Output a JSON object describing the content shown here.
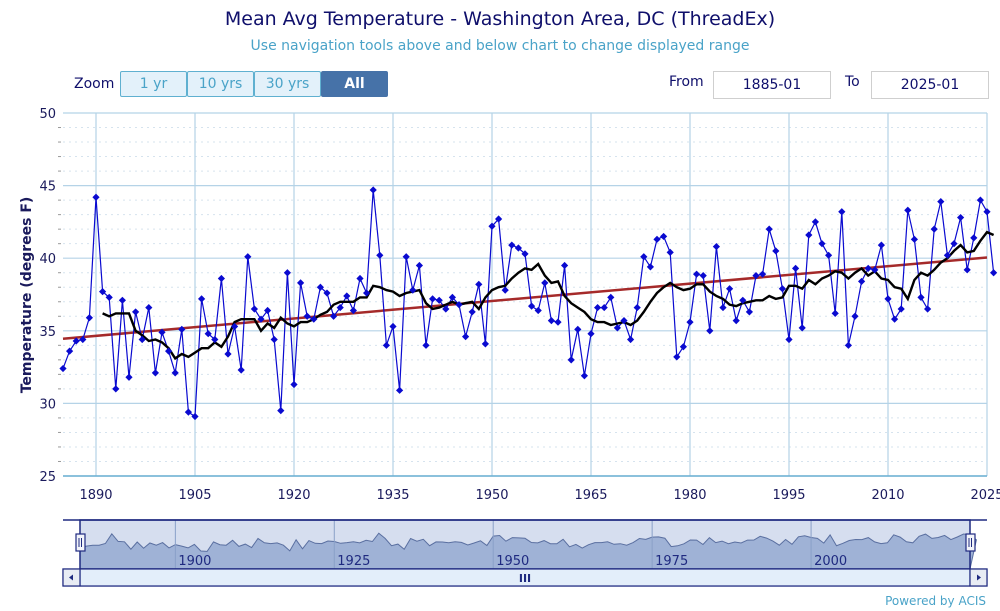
{
  "header": {
    "title": "Mean Avg Temperature - Washington Area, DC (ThreadEx)",
    "subtitle": "Use navigation tools above and below chart to change displayed range"
  },
  "zoom": {
    "label": "Zoom",
    "buttons": [
      {
        "label": "1 yr",
        "active": false
      },
      {
        "label": "10 yrs",
        "active": false
      },
      {
        "label": "30 yrs",
        "active": false
      },
      {
        "label": "All",
        "active": true
      }
    ]
  },
  "range": {
    "from_label": "From",
    "from_value": "1885-01",
    "to_label": "To",
    "to_value": "2025-01"
  },
  "navigator": {
    "tick_labels": [
      "1900",
      "1925",
      "1950",
      "1975",
      "2000"
    ],
    "scrollbar_grip": "III"
  },
  "footer": {
    "credit": "Powered by ACIS"
  },
  "colors": {
    "observed": "#0a0ad0",
    "moving_avg": "#000000",
    "trend": "#a52a2a",
    "grid": "#b5d3e7",
    "navigator_fill": "#9fb2d6"
  },
  "chart_data": {
    "type": "line",
    "title": "Mean Avg Temperature - Washington Area, DC (ThreadEx)",
    "xlabel": "",
    "ylabel": "Temperature (degrees F)",
    "xlim": [
      1885,
      2025
    ],
    "ylim": [
      25,
      50
    ],
    "x_ticks": [
      1890,
      1905,
      1920,
      1935,
      1950,
      1965,
      1980,
      1995,
      2010,
      2025
    ],
    "y_ticks": [
      25,
      30,
      35,
      40,
      45,
      50
    ],
    "grid": true,
    "legend": "none",
    "x_start": 1885,
    "series": [
      {
        "name": "Observed",
        "marker": "diamond",
        "values": [
          32.4,
          33.6,
          34.3,
          34.4,
          35.9,
          44.2,
          37.7,
          37.3,
          31.0,
          37.1,
          31.8,
          36.3,
          34.4,
          36.6,
          32.1,
          34.9,
          33.6,
          32.1,
          35.1,
          29.4,
          29.1,
          37.2,
          34.8,
          34.4,
          38.6,
          33.4,
          35.3,
          32.3,
          40.1,
          36.5,
          35.8,
          36.4,
          34.4,
          29.5,
          39.0,
          31.3,
          38.3,
          36.0,
          35.8,
          38.0,
          37.6,
          36.0,
          36.6,
          37.4,
          36.4,
          38.6,
          37.6,
          44.7,
          40.2,
          34.0,
          35.3,
          30.9,
          40.1,
          37.8,
          39.5,
          34.0,
          37.2,
          37.1,
          36.5,
          37.3,
          36.8,
          34.6,
          36.3,
          38.2,
          34.1,
          42.2,
          42.7,
          37.8,
          40.9,
          40.7,
          40.3,
          36.7,
          36.4,
          38.3,
          35.7,
          35.6,
          39.5,
          33.0,
          35.1,
          31.9,
          34.8,
          36.6,
          36.6,
          37.3,
          35.2,
          35.7,
          34.4,
          36.6,
          40.1,
          39.4,
          41.3,
          41.5,
          40.4,
          33.2,
          33.9,
          35.6,
          38.9,
          38.8,
          35.0,
          40.8,
          36.6,
          37.9,
          35.7,
          37.1,
          36.3,
          38.8,
          38.9,
          42.0,
          40.5,
          37.9,
          34.4,
          39.3,
          35.2,
          41.6,
          42.5,
          41.0,
          40.2,
          36.2,
          43.2,
          34.0,
          36.0,
          38.4,
          39.3,
          39.2,
          40.9,
          37.2,
          35.8,
          36.5,
          43.3,
          41.3,
          37.3,
          36.5,
          42.0,
          43.9,
          40.2,
          41.0,
          42.8,
          39.2,
          41.4,
          44.0,
          43.2,
          39.0
        ]
      },
      {
        "name": "10-yr Moving Average",
        "values": [
          null,
          null,
          null,
          null,
          null,
          null,
          36.2,
          36.0,
          36.2,
          36.2,
          36.2,
          35.0,
          34.7,
          34.3,
          34.4,
          34.2,
          33.8,
          33.1,
          33.4,
          33.2,
          33.5,
          33.8,
          33.8,
          34.2,
          33.9,
          34.6,
          35.6,
          35.8,
          35.8,
          35.8,
          35.0,
          35.5,
          35.2,
          35.9,
          35.5,
          35.3,
          35.6,
          35.6,
          35.8,
          36.1,
          36.3,
          36.8,
          37.0,
          37.0,
          37.0,
          37.3,
          37.3,
          38.1,
          38.0,
          37.8,
          37.7,
          37.4,
          37.6,
          37.7,
          37.8,
          36.9,
          36.5,
          36.6,
          36.8,
          37.0,
          36.8,
          36.9,
          37.0,
          36.5,
          37.3,
          37.8,
          38.0,
          38.1,
          38.6,
          39.0,
          39.3,
          39.2,
          39.6,
          38.8,
          38.3,
          38.4,
          37.4,
          36.9,
          36.6,
          36.3,
          35.8,
          35.6,
          35.6,
          35.4,
          35.5,
          35.6,
          35.4,
          35.7,
          36.3,
          37.0,
          37.6,
          38.0,
          38.3,
          38.0,
          37.8,
          37.9,
          38.2,
          38.2,
          37.7,
          37.4,
          37.2,
          36.8,
          36.7,
          36.9,
          37.0,
          37.1,
          37.1,
          37.4,
          37.2,
          37.3,
          38.1,
          38.1,
          37.9,
          38.5,
          38.2,
          38.6,
          38.8,
          39.1,
          39.0,
          38.6,
          39.0,
          39.3,
          38.8,
          39.1,
          38.6,
          38.5,
          38.0,
          37.9,
          37.2,
          38.5,
          39.0,
          38.8,
          39.2,
          39.7,
          40.0,
          40.5,
          40.9,
          40.4,
          40.5,
          41.2,
          41.8,
          41.6
        ]
      },
      {
        "name": "Linear Trend",
        "values_at": {
          "1885": 34.45,
          "2025": 40.05
        }
      }
    ]
  }
}
